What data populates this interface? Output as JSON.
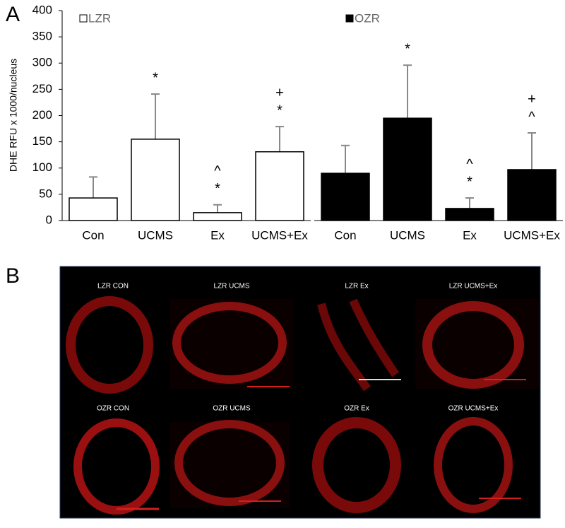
{
  "panel_labels": [
    "A",
    "B"
  ],
  "chart_data": {
    "type": "bar",
    "y_label": "DHE RFU x 1000/nucleus",
    "categories": [
      "Con",
      "UCMS",
      "Ex",
      "UCMS+Ex"
    ],
    "series": [
      {
        "name": "LZR",
        "color": "#ffffff",
        "values": [
          43,
          155,
          15,
          131
        ],
        "errors": [
          40,
          86,
          15,
          48
        ],
        "annotations": [
          [],
          [
            "*"
          ],
          [
            "^",
            "*"
          ],
          [
            "+",
            "*"
          ]
        ]
      },
      {
        "name": "OZR",
        "color": "#000000",
        "values": [
          90,
          195,
          23,
          97
        ],
        "errors": [
          53,
          101,
          20,
          70
        ],
        "annotations": [
          [],
          [
            "*"
          ],
          [
            "^",
            "*"
          ],
          [
            "+",
            "^"
          ]
        ]
      }
    ],
    "ylim": [
      0,
      400
    ],
    "yticks": [
      0,
      50,
      100,
      150,
      200,
      250,
      300,
      350,
      400
    ],
    "grid": false
  },
  "images": {
    "labels": [
      "LZR CON",
      "LZR UCMS",
      "LZR Ex",
      "LZR UCMS+Ex",
      "OZR CON",
      "OZR UCMS",
      "OZR Ex",
      "OZR UCMS+Ex"
    ]
  }
}
